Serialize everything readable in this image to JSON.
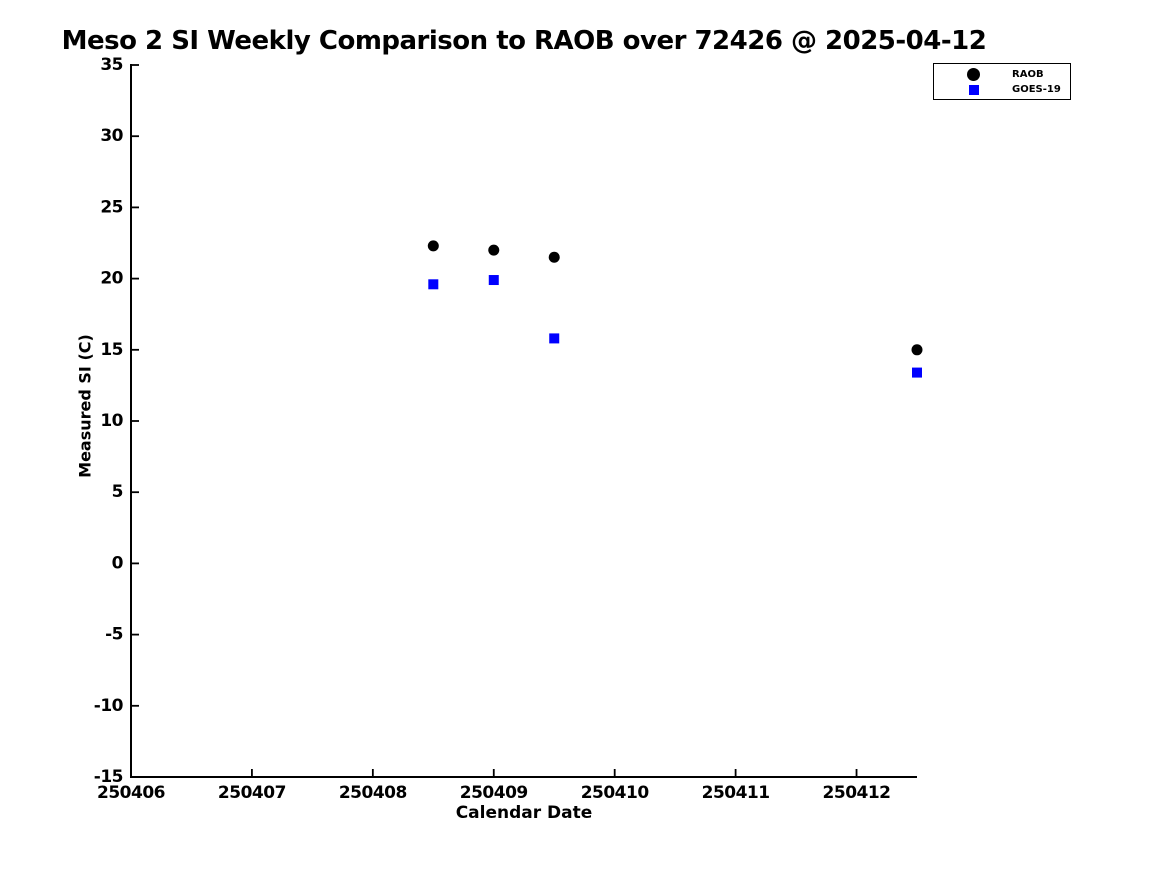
{
  "chart": {
    "title": "Meso 2 SI Weekly Comparison to RAOB over 72426 @ 2025-04-12",
    "xlabel": "Calendar Date",
    "ylabel": "Measured SI (C)"
  },
  "colors": {
    "background": "#ffffff",
    "axis": "#000000",
    "raob": "#000000",
    "goes19": "#0000ff",
    "legend_border": "#000000"
  },
  "chart_data": {
    "type": "scatter",
    "title": "Meso 2 SI Weekly Comparison to RAOB over 72426 @ 2025-04-12",
    "xlabel": "Calendar Date",
    "ylabel": "Measured SI (C)",
    "xlim": [
      250406,
      250412.5
    ],
    "ylim": [
      -15,
      35
    ],
    "xticks": [
      250406,
      250407,
      250408,
      250409,
      250410,
      250411,
      250412
    ],
    "yticks": [
      35,
      30,
      25,
      20,
      15,
      10,
      5,
      0,
      -5,
      -10,
      -15
    ],
    "grid": false,
    "legend_position": "top-right",
    "series": [
      {
        "name": "RAOB",
        "marker": "circle",
        "marker_icon": "circle-marker-icon",
        "color": "#000000",
        "x": [
          250408.5,
          250409.0,
          250409.5,
          250412.5
        ],
        "y": [
          22.3,
          22.0,
          21.5,
          15.0
        ]
      },
      {
        "name": "GOES-19",
        "marker": "square",
        "marker_icon": "square-marker-icon",
        "color": "#0000ff",
        "x": [
          250408.5,
          250409.0,
          250409.5,
          250412.5
        ],
        "y": [
          19.6,
          19.9,
          15.8,
          13.4
        ]
      }
    ]
  }
}
